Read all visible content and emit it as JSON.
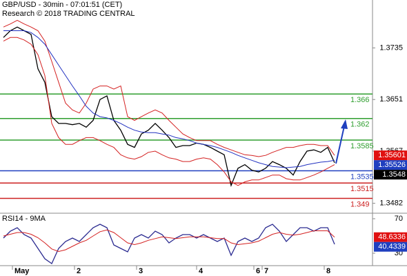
{
  "chart_data": [
    {
      "type": "line",
      "title": "GBP/USD - 30min - 07:01:51 (CET)",
      "subtitle": "Research © 2018 TRADING CENTRAL",
      "x": [
        0,
        1,
        2,
        3,
        4,
        5,
        6,
        7,
        8,
        9,
        10,
        11,
        12,
        13,
        14,
        15,
        16,
        17,
        18,
        19,
        20,
        21,
        22,
        23,
        24,
        25,
        26,
        27,
        28,
        29,
        30,
        31,
        32,
        33,
        34,
        35,
        36,
        37,
        38,
        39,
        40,
        41,
        42,
        43,
        44,
        45,
        46,
        47,
        48
      ],
      "xlim": [
        -0.5,
        53.5
      ],
      "xticks": [
        {
          "value": 1.3,
          "label": "May"
        },
        {
          "value": 10.3,
          "label": "2"
        },
        {
          "value": 19.3,
          "label": "3"
        },
        {
          "value": 28,
          "label": "4"
        },
        {
          "value": 36.3,
          "label": "6"
        },
        {
          "value": 37.5,
          "label": "7"
        },
        {
          "value": 46.5,
          "label": "8"
        }
      ],
      "ylim": [
        1.3467,
        1.3813
      ],
      "yticks": [
        1.3482,
        1.3567,
        1.3651,
        1.3735
      ],
      "series": [
        {
          "color": "#000000",
          "values": [
            1.3752,
            1.3763,
            1.3769,
            1.3763,
            1.3757,
            1.3701,
            1.3679,
            1.3623,
            1.3612,
            1.3612,
            1.361,
            1.3612,
            1.3606,
            1.3617,
            1.3651,
            1.3657,
            1.3617,
            1.3601,
            1.3578,
            1.3573,
            1.3595,
            1.3601,
            1.3612,
            1.3601,
            1.3589,
            1.3573,
            1.3576,
            1.3576,
            1.358,
            1.3578,
            1.3573,
            1.3567,
            1.3561,
            1.3511,
            1.3539,
            1.3545,
            1.3536,
            1.3533,
            1.3539,
            1.355,
            1.3545,
            1.3539,
            1.3528,
            1.355,
            1.3567,
            1.3569,
            1.3565,
            1.3573,
            1.3548
          ]
        },
        {
          "color": "#d42020",
          "values": [
            1.3769,
            1.3774,
            1.378,
            1.3774,
            1.3769,
            1.3763,
            1.3746,
            1.3713,
            1.3679,
            1.3645,
            1.3634,
            1.3629,
            1.3645,
            1.3668,
            1.3673,
            1.3673,
            1.3668,
            1.3673,
            1.3623,
            1.3617,
            1.3623,
            1.3629,
            1.3634,
            1.3629,
            1.3617,
            1.3606,
            1.3595,
            1.3589,
            1.3584,
            1.3584,
            1.3584,
            1.3578,
            1.3573,
            1.3569,
            1.3565,
            1.3561,
            1.356,
            1.3558,
            1.356,
            1.3565,
            1.3569,
            1.3573,
            1.3573,
            1.3576,
            1.3578,
            1.3578,
            1.3576,
            1.3576,
            1.356
          ]
        },
        {
          "color": "#d42020",
          "values": [
            1.3746,
            1.3752,
            1.3752,
            1.3748,
            1.3741,
            1.3724,
            1.369,
            1.3612,
            1.3589,
            1.3578,
            1.3578,
            1.3584,
            1.3589,
            1.3589,
            1.3584,
            1.3578,
            1.3573,
            1.3561,
            1.3556,
            1.3554,
            1.3558,
            1.3565,
            1.3567,
            1.3561,
            1.3556,
            1.3554,
            1.355,
            1.355,
            1.3554,
            1.3556,
            1.3554,
            1.3545,
            1.3533,
            1.3517,
            1.3511,
            1.3517,
            1.352,
            1.352,
            1.3524,
            1.3528,
            1.3528,
            1.3522,
            1.352,
            1.352,
            1.3524,
            1.3528,
            1.3533,
            1.3539,
            1.3545
          ]
        },
        {
          "color": "#2030c0",
          "values": [
            1.3763,
            1.3763,
            1.3763,
            1.3763,
            1.376,
            1.3752,
            1.3741,
            1.3724,
            1.3707,
            1.369,
            1.3673,
            1.3657,
            1.364,
            1.3629,
            1.3623,
            1.3621,
            1.3617,
            1.3612,
            1.3606,
            1.3601,
            1.3598,
            1.3597,
            1.3597,
            1.3595,
            1.3593,
            1.3589,
            1.3587,
            1.3584,
            1.358,
            1.3578,
            1.3576,
            1.3573,
            1.3569,
            1.3565,
            1.356,
            1.3556,
            1.3552,
            1.3548,
            1.3545,
            1.3542,
            1.3541,
            1.354,
            1.3541,
            1.3542,
            1.3545,
            1.3547,
            1.3549,
            1.355,
            1.3552
          ]
        }
      ],
      "levels": [
        {
          "value": 1.366,
          "color": "#2e9e2e"
        },
        {
          "value": 1.362,
          "color": "#2e9e2e"
        },
        {
          "value": 1.3585,
          "color": "#2e9e2e"
        },
        {
          "value": 1.3535,
          "color": "#1f3fbf"
        },
        {
          "value": 1.3515,
          "color": "#cc2020"
        },
        {
          "value": 1.349,
          "color": "#cc2020"
        }
      ],
      "price_tags": [
        {
          "value": 1.35601,
          "color": "#e01010"
        },
        {
          "value": 1.35526,
          "color": "#1f3fbf"
        },
        {
          "value": 1.3548,
          "color": "#000000"
        }
      ]
    },
    {
      "type": "line",
      "title": "RSI14 - 9MA",
      "ylim": [
        15.6,
        75.6
      ],
      "yticks": [
        30,
        70
      ],
      "series": [
        {
          "color": "#2a2a90",
          "values": [
            47.6,
            55.6,
            59.6,
            51.6,
            47.6,
            35.6,
            23.6,
            18,
            35.6,
            43.6,
            47.6,
            43.6,
            51.6,
            59.6,
            63.6,
            59.6,
            39.6,
            35.6,
            31.6,
            47.6,
            51.6,
            47.6,
            55.6,
            51.6,
            42,
            47.6,
            51.6,
            51.6,
            47.6,
            51.6,
            47.6,
            43.6,
            47.6,
            27.6,
            43.6,
            47.6,
            43.6,
            47.6,
            59.6,
            63.6,
            55.6,
            43.6,
            51.6,
            59.6,
            59.6,
            55.6,
            59.6,
            59.6,
            40.4339
          ]
        },
        {
          "color": "#d42020",
          "values": [
            50,
            52,
            54,
            54,
            52,
            48,
            42,
            35,
            32,
            34,
            38,
            42,
            45,
            50,
            55,
            57,
            54,
            48,
            42,
            40,
            42,
            45,
            47,
            49,
            48,
            47,
            48,
            49,
            49,
            49,
            48,
            47,
            47,
            42,
            40,
            41,
            42,
            44,
            48,
            52,
            54,
            52,
            51,
            52,
            54,
            56,
            56,
            56,
            48.6336
          ]
        }
      ],
      "price_tags": [
        {
          "value": 48.6336,
          "color": "#e01010"
        },
        {
          "value": 40.4339,
          "color": "#1f3fbf"
        }
      ]
    }
  ]
}
